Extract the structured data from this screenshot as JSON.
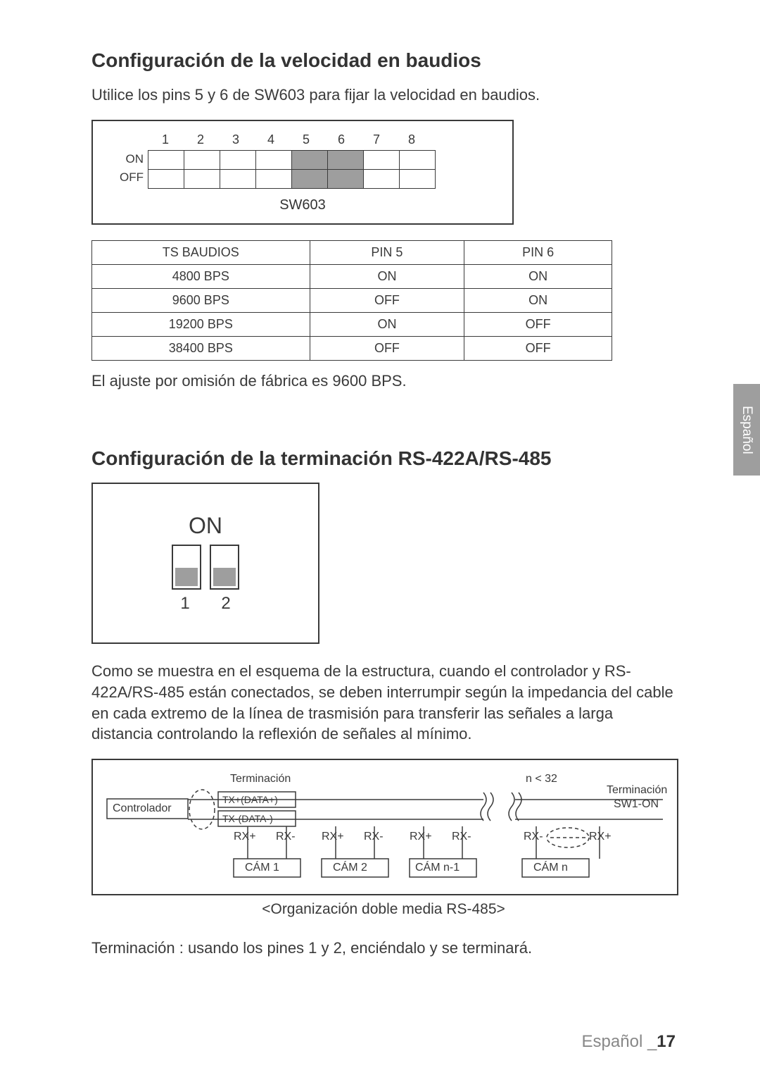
{
  "section1": {
    "title": "Configuración de la velocidad en baudios",
    "intro": "Utilice los pins 5 y 6 de SW603 para fijar la velocidad en baudios.",
    "dip": {
      "numbers": [
        "1",
        "2",
        "3",
        "4",
        "5",
        "6",
        "7",
        "8"
      ],
      "row_labels": [
        "ON",
        "OFF"
      ],
      "shaded_cols": [
        5,
        6
      ],
      "label": "SW603",
      "border_color": "#3a3a3a",
      "shade_color": "#9e9e9e"
    },
    "table": {
      "headers": [
        "TS BAUDIOS",
        "PIN 5",
        "PIN 6"
      ],
      "rows": [
        [
          "4800 BPS",
          "ON",
          "ON"
        ],
        [
          "9600 BPS",
          "OFF",
          "ON"
        ],
        [
          "19200 BPS",
          "ON",
          "OFF"
        ],
        [
          "38400 BPS",
          "OFF",
          "OFF"
        ]
      ]
    },
    "footnote": "El ajuste por omisión de fábrica es 9600 BPS."
  },
  "side_tab": {
    "text": "Español",
    "bg": "#9e9e9e",
    "fg": "#ffffff"
  },
  "section2": {
    "title": "Configuración de la terminación RS-422A/RS-485",
    "switch": {
      "on_label": "ON",
      "numbers": [
        "1",
        "2"
      ],
      "slider_color": "#9e9e9e",
      "border_color": "#3a3a3a"
    },
    "para": "Como se muestra en el esquema de la estructura, cuando el controlador y RS-422A/RS-485 están conectados, se deben interrumpir según la impedancia del cable en cada extremo de la línea de trasmisión para transferir las señales a larga distancia controlando la reflexión de señales al mínimo.",
    "wiring": {
      "labels": {
        "terminacion_top": "Terminación",
        "n_lt_32": "n < 32",
        "controlador": "Controlador",
        "txp": "TX+(DATA+)",
        "txn": "TX-(DATA-)",
        "terminacion_right": "Terminación",
        "sw1_on": "SW1-ON",
        "rxp": "RX+",
        "rxn": "RX-",
        "cams": [
          "CÁM 1",
          "CÁM 2",
          "CÁM n-1",
          "CÁM n"
        ]
      },
      "line_color": "#3a3a3a"
    },
    "caption": "<Organización doble media RS-485>",
    "note": "Terminación : usando los pines 1 y 2, enciéndalo y se terminará."
  },
  "footer": {
    "lang": "Español",
    "sep": " _",
    "page": "17"
  }
}
